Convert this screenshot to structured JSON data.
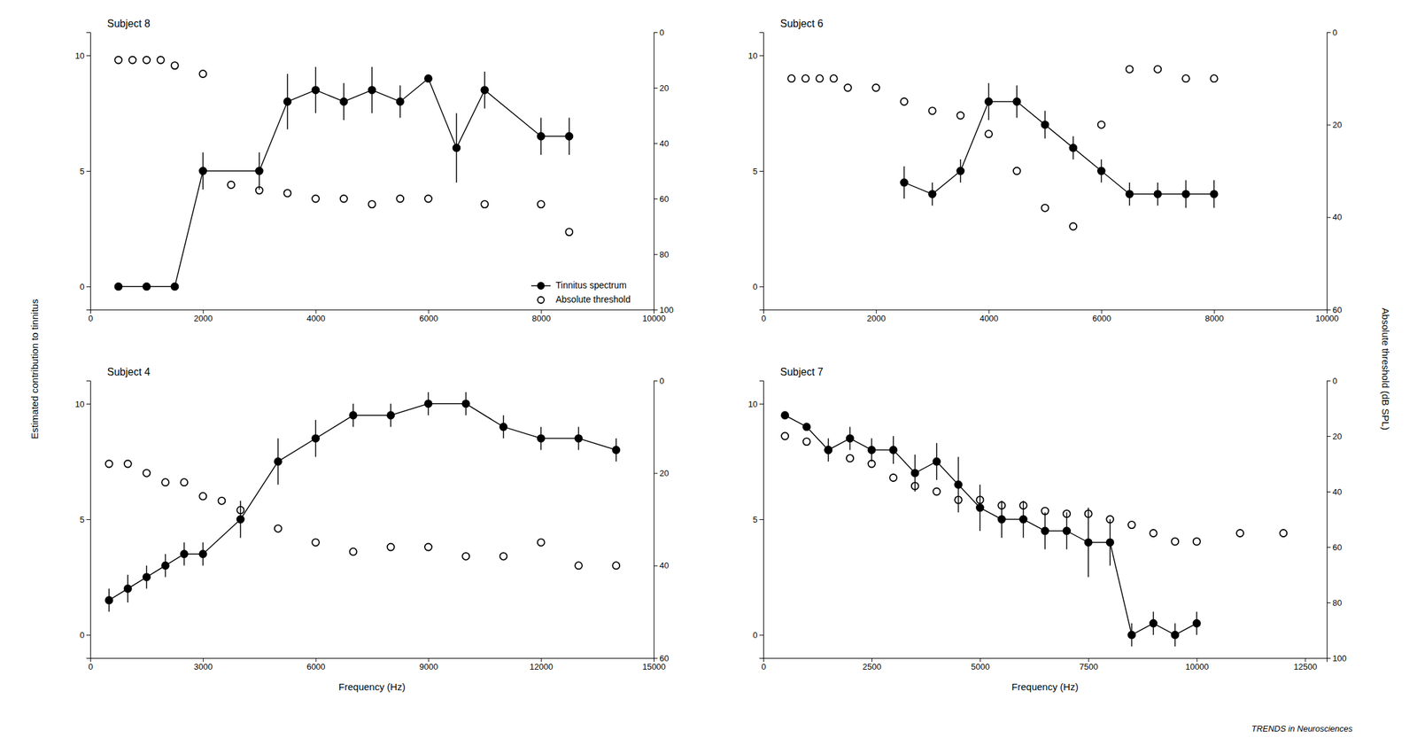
{
  "chart_data": [
    {
      "type": "line",
      "title": "Subject 8",
      "ylabel": "Estimated contribution to tinnitus",
      "y2label": "Absolute threshold (dB SPL)",
      "xlim": [
        0,
        10000
      ],
      "xticks": [
        0,
        2000,
        4000,
        6000,
        8000,
        10000
      ],
      "ylim": [
        -1.0,
        11.0
      ],
      "yticks": [
        0,
        5,
        10
      ],
      "y2lim": [
        100,
        0
      ],
      "y2ticks": [
        0,
        20,
        40,
        60,
        80,
        100
      ],
      "grid": false,
      "legend": "lower right",
      "series": [
        {
          "name": "Tinnitus spectrum",
          "type": "line",
          "marker": "circle",
          "color": "#000000",
          "x": [
            500,
            1000,
            1500,
            2000,
            3000,
            3500,
            4000,
            4500,
            5000,
            5500,
            6000,
            6500,
            7000,
            8000,
            8500
          ],
          "values": [
            0.0,
            0.0,
            0.0,
            5.0,
            5.0,
            8.0,
            8.5,
            8.0,
            8.5,
            8.0,
            9.0,
            6.0,
            8.5,
            6.5,
            6.5
          ],
          "errors": [
            0.0,
            0.0,
            0.0,
            0.8,
            0.8,
            1.2,
            1.0,
            0.8,
            1.0,
            0.7,
            0.0,
            1.5,
            0.8,
            0.8,
            0.8
          ]
        },
        {
          "name": "Absolute threshold",
          "type": "scatter",
          "marker": "circle-open",
          "color": "#000000",
          "axis": "y2",
          "x": [
            500,
            750,
            1000,
            1250,
            1500,
            2000,
            2500,
            3000,
            3500,
            4000,
            4500,
            5000,
            5500,
            6000,
            7000,
            8000,
            8500
          ],
          "values": [
            10,
            10,
            10,
            10,
            12,
            15,
            55,
            57,
            58,
            60,
            60,
            62,
            60,
            60,
            62,
            62,
            72
          ]
        }
      ]
    },
    {
      "type": "line",
      "title": "Subject 6",
      "xlim": [
        0,
        10000
      ],
      "xticks": [
        0,
        2000,
        4000,
        6000,
        8000,
        10000
      ],
      "ylim": [
        -1.0,
        11.0
      ],
      "yticks": [
        0,
        5,
        10
      ],
      "y2lim": [
        60,
        0
      ],
      "y2ticks": [
        0,
        20,
        40,
        60
      ],
      "grid": false,
      "series": [
        {
          "type": "line",
          "marker": "circle",
          "color": "#000000",
          "x": [
            2500,
            3000,
            3500,
            4000,
            4500,
            5000,
            5500,
            6000,
            6500,
            7000,
            7500,
            8000
          ],
          "values": [
            4.5,
            4.0,
            5.0,
            8.0,
            8.0,
            7.0,
            6.0,
            5.0,
            4.0,
            4.0,
            4.0,
            4.0
          ],
          "errors": [
            0.7,
            0.5,
            0.5,
            0.8,
            0.7,
            0.6,
            0.5,
            0.5,
            0.5,
            0.5,
            0.6,
            0.6
          ]
        },
        {
          "type": "scatter",
          "marker": "circle-open",
          "color": "#000000",
          "axis": "y2",
          "x": [
            500,
            750,
            1000,
            1250,
            1500,
            2000,
            2500,
            3000,
            3500,
            4000,
            4500,
            5000,
            5500,
            6000,
            6500,
            7000,
            7500,
            8000
          ],
          "values": [
            10,
            10,
            10,
            10,
            12,
            12,
            15,
            17,
            18,
            22,
            30,
            38,
            42,
            20,
            8,
            8,
            10,
            10
          ]
        }
      ]
    },
    {
      "type": "line",
      "title": "Subject 4",
      "xlabel": "Frequency (Hz)",
      "xlim": [
        0,
        15000
      ],
      "xticks": [
        0,
        3000,
        6000,
        9000,
        12000,
        15000
      ],
      "ylim": [
        -1.0,
        11.0
      ],
      "yticks": [
        0,
        5,
        10
      ],
      "y2lim": [
        60,
        0
      ],
      "y2ticks": [
        0,
        20,
        40,
        60
      ],
      "grid": false,
      "series": [
        {
          "type": "line",
          "marker": "circle",
          "color": "#000000",
          "x": [
            500,
            1000,
            1500,
            2000,
            2500,
            3000,
            4000,
            5000,
            6000,
            7000,
            8000,
            9000,
            10000,
            11000,
            12000,
            13000,
            14000
          ],
          "values": [
            1.5,
            2.0,
            2.5,
            3.0,
            3.5,
            3.5,
            5.0,
            7.5,
            8.5,
            9.5,
            9.5,
            10.0,
            10.0,
            9.0,
            8.5,
            8.5,
            8.0
          ],
          "errors": [
            0.5,
            0.6,
            0.5,
            0.5,
            0.5,
            0.5,
            0.8,
            1.0,
            0.8,
            0.5,
            0.5,
            0.5,
            0.5,
            0.5,
            0.5,
            0.5,
            0.5
          ]
        },
        {
          "type": "scatter",
          "marker": "circle-open",
          "color": "#000000",
          "axis": "y2",
          "x": [
            500,
            1000,
            1500,
            2000,
            2500,
            3000,
            3500,
            4000,
            5000,
            6000,
            7000,
            8000,
            9000,
            10000,
            11000,
            12000,
            13000,
            14000
          ],
          "values": [
            18,
            18,
            20,
            22,
            22,
            25,
            26,
            28,
            32,
            35,
            37,
            36,
            36,
            38,
            38,
            35,
            40,
            40
          ]
        }
      ]
    },
    {
      "type": "line",
      "title": "Subject 7",
      "xlabel": "Frequency (Hz)",
      "xlim": [
        0,
        13000
      ],
      "xticks": [
        0,
        2500,
        5000,
        7500,
        10000,
        12500
      ],
      "ylim": [
        -1.0,
        11.0
      ],
      "yticks": [
        0,
        5,
        10
      ],
      "y2lim": [
        100,
        0
      ],
      "y2ticks": [
        0,
        20,
        40,
        60,
        80,
        100
      ],
      "grid": false,
      "annotations": [
        {
          "text": "TRENDS in Neurosciences"
        }
      ],
      "series": [
        {
          "type": "line",
          "marker": "circle",
          "color": "#000000",
          "x": [
            500,
            1000,
            1500,
            2000,
            2500,
            3000,
            3500,
            4000,
            4500,
            5000,
            5500,
            6000,
            6500,
            7000,
            7500,
            8000,
            8500,
            9000,
            9500,
            10000
          ],
          "values": [
            9.5,
            9.0,
            8.0,
            8.5,
            8.0,
            8.0,
            7.0,
            7.5,
            6.5,
            5.5,
            5.0,
            5.0,
            4.5,
            4.5,
            4.0,
            4.0,
            0.0,
            0.5,
            0.0,
            0.5
          ],
          "errors": [
            0.0,
            0.0,
            0.5,
            0.5,
            0.5,
            0.6,
            0.8,
            0.8,
            1.2,
            1.0,
            0.8,
            0.8,
            0.8,
            0.8,
            1.5,
            1.0,
            0.5,
            0.5,
            0.5,
            0.5
          ]
        },
        {
          "type": "scatter",
          "marker": "circle-open",
          "color": "#000000",
          "axis": "y2",
          "x": [
            500,
            1000,
            1500,
            2000,
            2500,
            3000,
            3500,
            4000,
            4500,
            5000,
            5500,
            6000,
            6500,
            7000,
            7500,
            8000,
            8500,
            9000,
            9500,
            10000,
            11000,
            12000
          ],
          "values": [
            20,
            22,
            25,
            28,
            30,
            35,
            38,
            40,
            43,
            43,
            45,
            45,
            47,
            48,
            48,
            50,
            52,
            55,
            58,
            58,
            55,
            55
          ]
        }
      ]
    }
  ]
}
